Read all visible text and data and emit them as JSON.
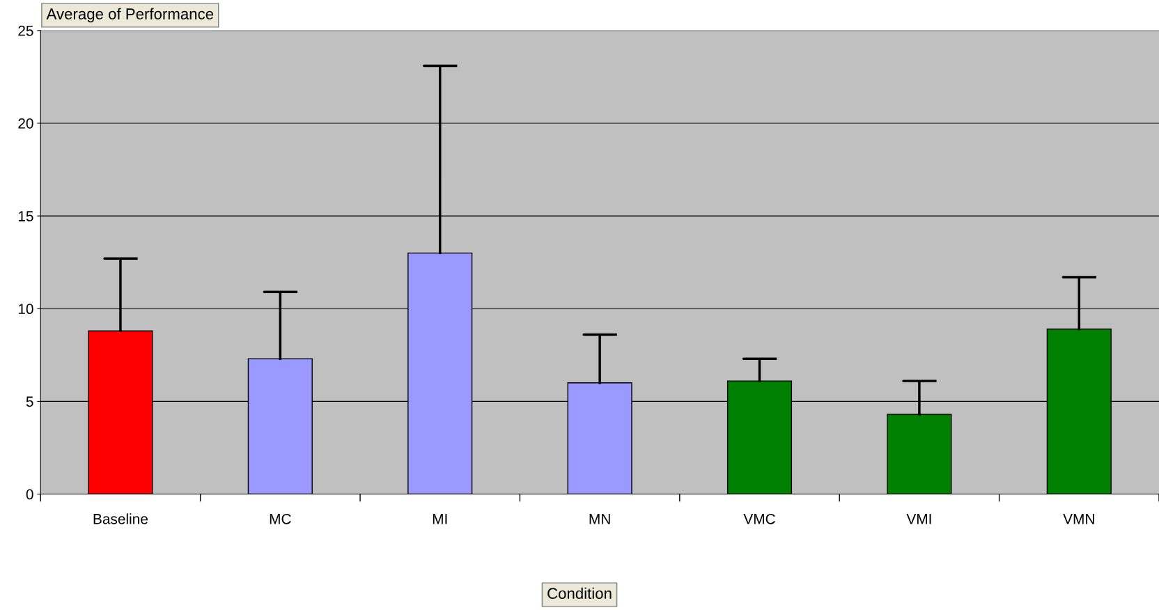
{
  "chart_data": {
    "type": "bar",
    "title": "Average of Performance",
    "xlabel": "Condition",
    "categories": [
      "Baseline",
      "MC",
      "MI",
      "MN",
      "VMC",
      "VMI",
      "VMN"
    ],
    "values": [
      8.8,
      7.3,
      13.0,
      6.0,
      6.1,
      4.3,
      8.9
    ],
    "colors": [
      "#ff0000",
      "#9999ff",
      "#9999ff",
      "#9999ff",
      "#008000",
      "#008000",
      "#008000"
    ],
    "errors": [
      [
        8.8,
        12.7
      ],
      [
        7.3,
        10.9
      ],
      [
        13.0,
        23.1
      ],
      [
        6.0,
        8.6
      ],
      [
        6.1,
        7.3
      ],
      [
        4.3,
        6.1
      ],
      [
        8.9,
        11.7
      ]
    ],
    "ylim": [
      0,
      25
    ],
    "yticks": [
      0,
      5,
      10,
      15,
      20,
      25
    ],
    "grid": "y",
    "legend": false
  }
}
